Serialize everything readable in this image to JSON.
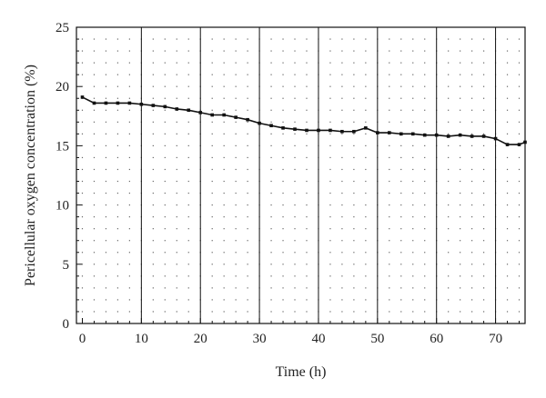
{
  "chart_data": {
    "type": "line",
    "xlabel": "Time (h)",
    "ylabel": "Pericellular oxygen concentration (%)",
    "xlim": [
      -1,
      75
    ],
    "ylim": [
      0,
      25
    ],
    "x_ticks": [
      0,
      10,
      20,
      30,
      40,
      50,
      60,
      70
    ],
    "y_ticks": [
      0,
      5,
      10,
      15,
      20,
      25
    ],
    "grid": {
      "vertical_lines_at": [
        10,
        20,
        30,
        40,
        50,
        60,
        70
      ],
      "dotted_minor_grid": true
    },
    "series": [
      {
        "color": "#111111",
        "marker": "square",
        "x": [
          0,
          2,
          4,
          6,
          8,
          10,
          12,
          14,
          16,
          18,
          20,
          22,
          24,
          26,
          28,
          30,
          32,
          34,
          36,
          38,
          40,
          42,
          44,
          46,
          48,
          50,
          52,
          54,
          56,
          58,
          60,
          62,
          64,
          66,
          68,
          70,
          72,
          74,
          75
        ],
        "y": [
          19.1,
          18.6,
          18.6,
          18.6,
          18.6,
          18.5,
          18.4,
          18.3,
          18.1,
          18.0,
          17.8,
          17.6,
          17.6,
          17.4,
          17.2,
          16.9,
          16.7,
          16.5,
          16.4,
          16.3,
          16.3,
          16.3,
          16.2,
          16.2,
          16.5,
          16.1,
          16.1,
          16.0,
          16.0,
          15.9,
          15.9,
          15.8,
          15.9,
          15.8,
          15.8,
          15.6,
          15.1,
          15.1,
          15.3
        ]
      }
    ]
  }
}
